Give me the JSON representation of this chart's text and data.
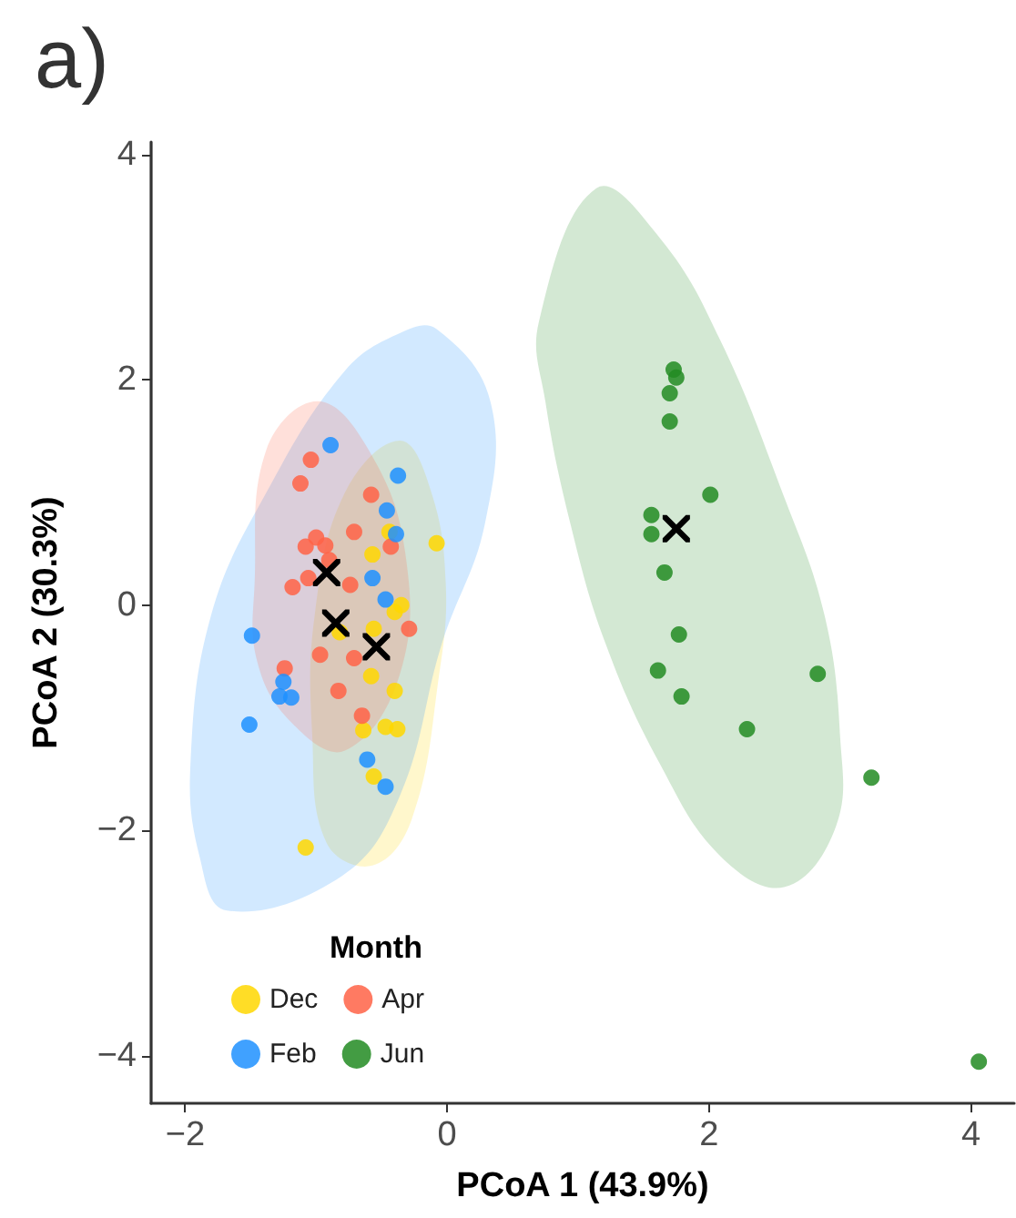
{
  "chart_data": {
    "type": "scatter",
    "title": "a)",
    "xlabel": "PCoA 1 (43.9%)",
    "ylabel": "PCoA 2 (30.3%)",
    "legend_title": "Month",
    "legend": "bottom left",
    "grid": false,
    "marker": "circle",
    "xlim": [
      -2.26,
      4.33
    ],
    "xticks": [
      -2,
      0,
      2,
      4
    ],
    "ylim": [
      -4.42,
      4.11
    ],
    "yticks": [
      -4,
      -2,
      0,
      2,
      4
    ],
    "series": [
      {
        "type": "area",
        "marker": "none",
        "color": "#ffd700",
        "x": [
          -0.36,
          -0.12,
          -0.01,
          -0.06,
          -0.27,
          -0.57,
          -0.92,
          -1.03,
          -1.01,
          -0.78
        ],
        "values": [
          1.46,
          1.0,
          0.19,
          -0.61,
          -1.9,
          -2.31,
          -2.11,
          -1.15,
          -0.08,
          1.0
        ]
      },
      {
        "type": "area",
        "marker": "none",
        "color": "#1e90ff",
        "x": [
          -0.08,
          0.33,
          0.29,
          -0.04,
          -0.36,
          -0.8,
          -1.68,
          -1.89,
          -1.96,
          -1.8,
          -1.38,
          -0.78,
          -0.35
        ],
        "values": [
          2.45,
          1.81,
          0.73,
          -0.34,
          -1.69,
          -2.4,
          -2.71,
          -2.23,
          -1.42,
          -0.08,
          1.0,
          2.08,
          2.42
        ]
      },
      {
        "type": "area",
        "marker": "none",
        "color": "#ff6347",
        "x": [
          -0.99,
          -0.6,
          -0.32,
          -0.36,
          -0.78,
          -1.19,
          -1.45,
          -1.47,
          -1.38
        ],
        "values": [
          1.81,
          1.38,
          0.47,
          -0.61,
          -1.29,
          -1.04,
          -0.5,
          0.19,
          1.38
        ]
      },
      {
        "type": "area",
        "marker": "none",
        "color": "#228b22",
        "x": [
          1.14,
          1.63,
          2.09,
          2.56,
          2.88,
          3.0,
          2.97,
          2.58,
          2.09,
          1.63,
          1.21,
          0.94,
          0.75,
          0.7
        ],
        "values": [
          3.7,
          3.25,
          2.34,
          1.0,
          -0.08,
          -1.15,
          -1.96,
          -2.5,
          -2.23,
          -1.42,
          -0.34,
          0.73,
          1.81,
          2.51
        ]
      },
      {
        "name": "Dec",
        "color": "#ffd700",
        "x": [
          -0.08,
          -0.57,
          -0.44,
          -0.4,
          -0.35,
          -0.56,
          -0.82,
          -0.58,
          -0.4,
          -0.64,
          -0.47,
          -0.38,
          -0.56,
          -1.08
        ],
        "values": [
          0.55,
          0.45,
          0.65,
          -0.06,
          0.0,
          -0.21,
          -0.24,
          -0.63,
          -0.76,
          -1.11,
          -1.08,
          -1.1,
          -1.52,
          -2.15
        ]
      },
      {
        "name": "Apr",
        "color": "#ff6347",
        "x": [
          -1.04,
          -1.12,
          -0.58,
          -0.71,
          -0.43,
          -1.0,
          -1.08,
          -0.93,
          -0.9,
          -1.06,
          -1.18,
          -0.74,
          -0.29,
          -0.97,
          -0.71,
          -1.24,
          -0.83,
          -0.65
        ],
        "values": [
          1.29,
          1.08,
          0.98,
          0.65,
          0.52,
          0.6,
          0.52,
          0.53,
          0.4,
          0.24,
          0.16,
          0.18,
          -0.21,
          -0.44,
          -0.47,
          -0.56,
          -0.76,
          -0.98
        ]
      },
      {
        "name": "Feb",
        "color": "#1e90ff",
        "x": [
          -0.89,
          -0.375,
          -0.46,
          -0.39,
          -0.57,
          -0.47,
          -1.49,
          -1.25,
          -1.28,
          -1.19,
          -1.51,
          -0.61,
          -0.47
        ],
        "values": [
          1.42,
          1.15,
          0.84,
          0.63,
          0.24,
          0.05,
          -0.27,
          -0.68,
          -0.81,
          -0.82,
          -1.06,
          -1.37,
          -1.61
        ]
      },
      {
        "name": "Jun",
        "color": "#228b22",
        "x": [
          1.73,
          1.75,
          1.7,
          1.7,
          2.01,
          1.56,
          1.56,
          1.66,
          1.77,
          1.61,
          1.79,
          2.83,
          2.29,
          3.24,
          4.06
        ],
        "values": [
          2.09,
          2.02,
          1.88,
          1.63,
          0.98,
          0.8,
          0.63,
          0.29,
          -0.26,
          -0.58,
          -0.81,
          -0.61,
          -1.1,
          -1.53,
          -4.05
        ]
      },
      {
        "color": "#000000",
        "marker": "cross",
        "x": [
          -0.92,
          -0.85,
          -0.54,
          1.75
        ],
        "values": [
          0.29,
          -0.16,
          -0.37,
          0.68
        ]
      }
    ]
  }
}
